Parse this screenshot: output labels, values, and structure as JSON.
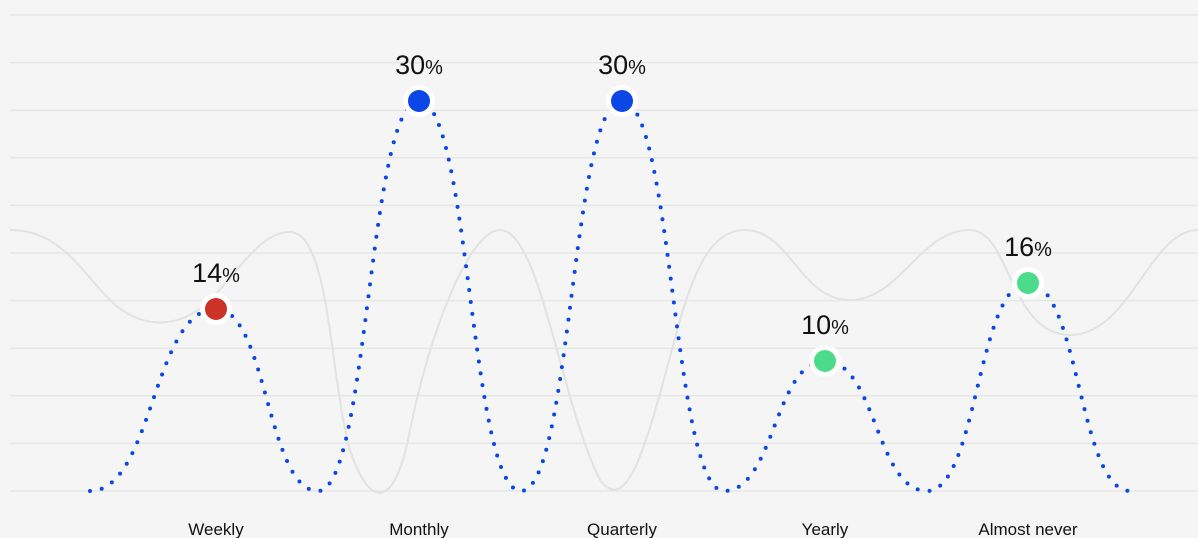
{
  "chart_data": {
    "type": "line",
    "categories": [
      "Weekly",
      "Monthly",
      "Quarterly",
      "Yearly",
      "Almost never"
    ],
    "values": [
      14,
      30,
      30,
      10,
      16
    ],
    "value_suffix": "%",
    "ylim": [
      0,
      33
    ],
    "grid": true,
    "point_colors": [
      "#cc3327",
      "#0a47e6",
      "#0a47e6",
      "#4cdb8a",
      "#4cdb8a"
    ],
    "line_color": "#0a47e6",
    "line_style": "dotted",
    "background": "#f5f5f5"
  }
}
